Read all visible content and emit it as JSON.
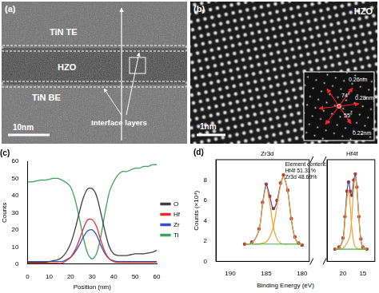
{
  "panels": {
    "a": {
      "label": "(a)",
      "top_layer": "TiN TE",
      "middle_layer": "HZO",
      "bottom_layer": "TiN BE",
      "interface": "Interface layers",
      "scale_bar": "10nm"
    },
    "b": {
      "label": "(b)",
      "material": "HZO",
      "scale_bar": "1nm",
      "inset": {
        "spacings": [
          "0.26nm",
          "0.28nm",
          "0.22nm"
        ],
        "angles": [
          "74°",
          "55°"
        ]
      }
    }
  },
  "chart_data": [
    {
      "type": "line",
      "title": "(c)",
      "x_label": "Position (nm)",
      "y_label": "Counts",
      "x": [
        0,
        2,
        4,
        6,
        8,
        10,
        12,
        14,
        16,
        18,
        20,
        22,
        24,
        26,
        28,
        30,
        32,
        34,
        36,
        38,
        40,
        42,
        44,
        46,
        48,
        50,
        52,
        54,
        56,
        58,
        60
      ],
      "series": [
        {
          "name": "O",
          "color": "#404040",
          "values": [
            1,
            1,
            1,
            1,
            1,
            1.5,
            2,
            2.5,
            4,
            7,
            12,
            20,
            30,
            39,
            44,
            44,
            40,
            30,
            19,
            10,
            6,
            5,
            5,
            5,
            5.5,
            6,
            6,
            6,
            6.5,
            7,
            8
          ]
        },
        {
          "name": "Hf",
          "color": "#e03030",
          "values": [
            0.5,
            0.5,
            0.5,
            0.5,
            0.5,
            0.5,
            0.5,
            0.5,
            0.5,
            2,
            4,
            8,
            14,
            21,
            26,
            26,
            22,
            14,
            7,
            3,
            1.5,
            1,
            1,
            1,
            1,
            1,
            1,
            1,
            1,
            1,
            1
          ]
        },
        {
          "name": "Zr",
          "color": "#3050d0",
          "values": [
            1.5,
            1.5,
            1.5,
            1.5,
            1.5,
            1.5,
            1.5,
            1.5,
            1.5,
            2.5,
            4,
            7,
            11,
            16,
            19.5,
            20,
            17,
            11,
            6,
            3,
            2,
            1.5,
            1.5,
            1.5,
            1.5,
            1.5,
            1.5,
            1.5,
            1.5,
            1.5,
            1.5
          ]
        },
        {
          "name": "Ti",
          "color": "#40a060",
          "values": [
            48,
            48,
            48.5,
            49,
            49,
            49.5,
            50,
            50,
            49,
            47.5,
            45,
            38,
            27,
            15,
            6,
            3,
            6,
            16,
            30,
            42,
            48,
            52,
            54,
            54,
            55,
            56,
            56,
            57,
            57,
            58,
            58
          ]
        }
      ],
      "xlim": [
        0,
        60
      ],
      "xticks": [
        0,
        10,
        20,
        30,
        40,
        50,
        60
      ],
      "ylim": [
        0,
        60
      ],
      "yticks": [
        0,
        10,
        20,
        30,
        40,
        50,
        60
      ],
      "grid": false,
      "legend": "right"
    },
    {
      "type": "line",
      "title": "(d)",
      "x_label": "Binding Energy (eV)",
      "y_label": "Counts (×10⁴)",
      "ylim": [
        0,
        10
      ],
      "yticks": [
        0,
        2,
        4,
        6,
        8
      ],
      "grid": false,
      "annotation": [
        "Element content:",
        "Hf4f 51.31%",
        "Zr3d 48.69%"
      ],
      "segments": [
        {
          "label": "Zr3d",
          "xlim": [
            192,
            179
          ],
          "xticks": [
            190,
            185,
            180
          ],
          "x": [
            188,
            187,
            186,
            185.5,
            185,
            184.5,
            184,
            183.5,
            183,
            182.6,
            182,
            181.5,
            181,
            180.5,
            180
          ],
          "series": [
            {
              "color": "#40b050",
              "marker": "none",
              "line_style": "solid",
              "values": [
                1.7,
                1.7,
                1.7,
                1.7,
                1.7,
                1.7,
                1.7,
                1.7,
                1.7,
                1.7,
                1.7,
                1.7,
                1.7,
                1.7,
                1.7
              ]
            },
            {
              "color": "#f0a030",
              "marker": "none",
              "line_style": "solid",
              "values": [
                1.7,
                1.8,
                3.1,
                5.6,
                7.3,
                5.7,
                3.4,
                2.2,
                1.8,
                1.7,
                1.7,
                1.7,
                1.7,
                1.7,
                1.7
              ]
            },
            {
              "color": "#f0a030",
              "marker": "none",
              "line_style": "solid",
              "values": [
                1.7,
                1.7,
                1.7,
                1.8,
                1.9,
                2.4,
                3.4,
                5.4,
                7.5,
                8.3,
                6.9,
                4.1,
                2.3,
                1.8,
                1.7
              ]
            },
            {
              "color": "#4b3fa0",
              "marker": "none",
              "line_style": "solid",
              "values": [
                1.7,
                1.8,
                3.1,
                5.7,
                7.5,
                6.4,
                5.1,
                5.9,
                7.6,
                8.3,
                6.9,
                4.1,
                2.3,
                1.8,
                1.7
              ]
            },
            {
              "color": "#c0392b",
              "marker": "circle",
              "line_style": "none",
              "values": [
                1.7,
                1.9,
                3.2,
                5.8,
                7.6,
                6.4,
                5.2,
                6.0,
                7.7,
                8.5,
                7.0,
                4.2,
                2.4,
                1.8,
                1.6
              ]
            }
          ]
        },
        {
          "label": "Hf4f",
          "xlim": [
            24,
            12
          ],
          "xticks": [
            20,
            15
          ],
          "x": [
            22,
            21,
            20,
            19.5,
            19,
            18.6,
            18.2,
            17.8,
            17.3,
            16.9,
            16.5,
            16,
            15.5,
            15,
            14
          ],
          "series": [
            {
              "color": "#40b050",
              "marker": "none",
              "line_style": "solid",
              "values": [
                1.2,
                1.2,
                1.2,
                1.2,
                1.2,
                1.2,
                1.2,
                1.2,
                1.2,
                1.2,
                1.2,
                1.2,
                1.2,
                1.2,
                1.2
              ]
            },
            {
              "color": "#f0a030",
              "marker": "none",
              "line_style": "solid",
              "values": [
                1.2,
                1.3,
                2.1,
                4.0,
                6.2,
                7.0,
                5.6,
                3.4,
                1.9,
                1.4,
                1.3,
                1.2,
                1.2,
                1.2,
                1.2
              ]
            },
            {
              "color": "#f0a030",
              "marker": "none",
              "line_style": "solid",
              "values": [
                1.2,
                1.2,
                1.3,
                1.5,
                1.8,
                2.1,
                2.6,
                4.2,
                7.2,
                8.3,
                7.1,
                4.3,
                2.1,
                1.4,
                1.2
              ]
            },
            {
              "color": "#4b3fa0",
              "marker": "none",
              "line_style": "solid",
              "values": [
                1.2,
                1.3,
                2.2,
                4.3,
                6.8,
                7.9,
                7.0,
                6.4,
                7.9,
                8.5,
                7.2,
                4.3,
                2.1,
                1.4,
                1.2
              ]
            },
            {
              "color": "#c0392b",
              "marker": "circle",
              "line_style": "none",
              "values": [
                1.2,
                1.4,
                2.3,
                4.4,
                6.9,
                7.8,
                6.9,
                6.5,
                8.0,
                8.6,
                7.3,
                4.4,
                2.2,
                1.4,
                1.2
              ]
            }
          ]
        }
      ]
    }
  ]
}
